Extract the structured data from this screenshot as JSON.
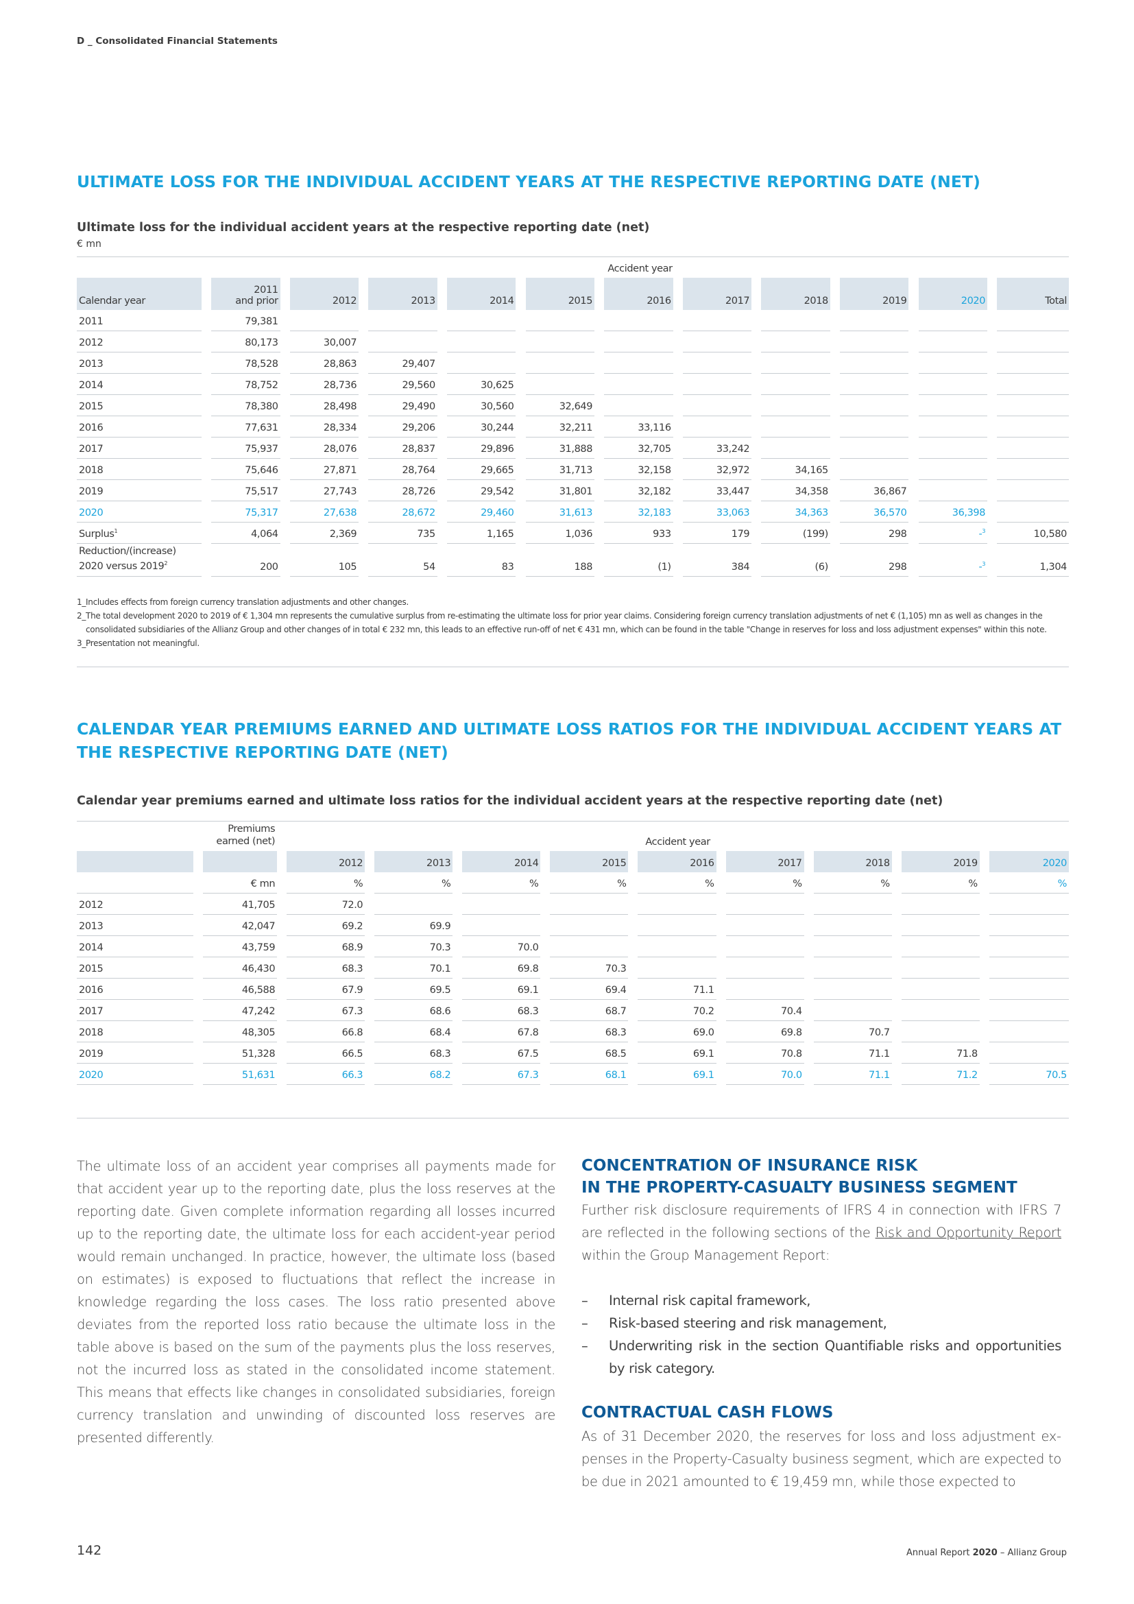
{
  "running_head": "D _ Consolidated Financial Statements",
  "section1": {
    "heading": "ULTIMATE LOSS FOR THE INDIVIDUAL ACCIDENT YEARS AT THE RESPECTIVE REPORTING DATE (NET)",
    "table_title": "Ultimate loss for the individual accident years at the respective reporting date (net)",
    "unit": "€ mn",
    "group_header": "Accident year",
    "col_header_first": "Calendar year",
    "col_2011_line1": "2011",
    "col_2011_line2": "and prior",
    "columns": [
      "2012",
      "2013",
      "2014",
      "2015",
      "2016",
      "2017",
      "2018",
      "2019",
      "2020",
      "Total"
    ],
    "rows": [
      {
        "label": "2011",
        "values": [
          "79,381",
          "",
          "",
          "",
          "",
          "",
          "",
          "",
          "",
          "",
          ""
        ]
      },
      {
        "label": "2012",
        "values": [
          "80,173",
          "30,007",
          "",
          "",
          "",
          "",
          "",
          "",
          "",
          "",
          ""
        ]
      },
      {
        "label": "2013",
        "values": [
          "78,528",
          "28,863",
          "29,407",
          "",
          "",
          "",
          "",
          "",
          "",
          "",
          ""
        ]
      },
      {
        "label": "2014",
        "values": [
          "78,752",
          "28,736",
          "29,560",
          "30,625",
          "",
          "",
          "",
          "",
          "",
          "",
          ""
        ]
      },
      {
        "label": "2015",
        "values": [
          "78,380",
          "28,498",
          "29,490",
          "30,560",
          "32,649",
          "",
          "",
          "",
          "",
          "",
          ""
        ]
      },
      {
        "label": "2016",
        "values": [
          "77,631",
          "28,334",
          "29,206",
          "30,244",
          "32,211",
          "33,116",
          "",
          "",
          "",
          "",
          ""
        ]
      },
      {
        "label": "2017",
        "values": [
          "75,937",
          "28,076",
          "28,837",
          "29,896",
          "31,888",
          "32,705",
          "33,242",
          "",
          "",
          "",
          ""
        ]
      },
      {
        "label": "2018",
        "values": [
          "75,646",
          "27,871",
          "28,764",
          "29,665",
          "31,713",
          "32,158",
          "32,972",
          "34,165",
          "",
          "",
          ""
        ]
      },
      {
        "label": "2019",
        "values": [
          "75,517",
          "27,743",
          "28,726",
          "29,542",
          "31,801",
          "32,182",
          "33,447",
          "34,358",
          "36,867",
          "",
          ""
        ]
      },
      {
        "label": "2020",
        "values": [
          "75,317",
          "27,638",
          "28,672",
          "29,460",
          "31,613",
          "32,183",
          "33,063",
          "34,363",
          "36,570",
          "36,398",
          ""
        ]
      },
      {
        "label": "Surplus",
        "sup": "1",
        "values": [
          "4,064",
          "2,369",
          "735",
          "1,165",
          "1,036",
          "933",
          "179",
          "(199)",
          "298",
          "-",
          "10,580"
        ],
        "sup_idx": 9,
        "sup_val": "3"
      },
      {
        "label": "Reduction/(increase)",
        "label2": "2020 versus 2019",
        "sup": "2",
        "values": [
          "200",
          "105",
          "54",
          "83",
          "188",
          "(1)",
          "384",
          "(6)",
          "298",
          "-",
          "1,304"
        ],
        "sup_idx": 9,
        "sup_val": "3"
      }
    ],
    "footnotes": [
      "1_Includes effects from foreign currency translation adjustments and other changes.",
      "2_The total development 2020 to 2019 of € 1,304 mn represents the cumulative surplus from re-estimating the ultimate loss for prior year claims. Considering foreign currency translation adjustments of net € (1,105) mn as well as changes in the",
      "consolidated subsidiaries of the Allianz Group and other changes of in total € 232 mn, this leads to an effective run-off of net € 431 mn, which can be found in the table \"Change in reserves for loss and loss adjustment expenses\" within this note.",
      "3_Presentation not meaningful."
    ]
  },
  "section2": {
    "heading_line1": "CALENDAR YEAR PREMIUMS EARNED AND ULTIMATE LOSS RATIOS FOR THE INDIVIDUAL ACCIDENT YEARS AT",
    "heading_line2": "THE RESPECTIVE REPORTING DATE (NET)",
    "table_title": "Calendar year premiums earned and ultimate loss ratios for the individual accident years at the respective reporting date (net)",
    "premiums_header_line1": "Premiums",
    "premiums_header_line2": "earned (net)",
    "group_header": "Accident year",
    "columns": [
      "2012",
      "2013",
      "2014",
      "2015",
      "2016",
      "2017",
      "2018",
      "2019",
      "2020"
    ],
    "unit_premiums": "€ mn",
    "unit_pct": "%",
    "rows": [
      {
        "label": "2012",
        "premiums": "41,705",
        "values": [
          "72.0",
          "",
          "",
          "",
          "",
          "",
          "",
          "",
          ""
        ]
      },
      {
        "label": "2013",
        "premiums": "42,047",
        "values": [
          "69.2",
          "69.9",
          "",
          "",
          "",
          "",
          "",
          "",
          ""
        ]
      },
      {
        "label": "2014",
        "premiums": "43,759",
        "values": [
          "68.9",
          "70.3",
          "70.0",
          "",
          "",
          "",
          "",
          "",
          ""
        ]
      },
      {
        "label": "2015",
        "premiums": "46,430",
        "values": [
          "68.3",
          "70.1",
          "69.8",
          "70.3",
          "",
          "",
          "",
          "",
          ""
        ]
      },
      {
        "label": "2016",
        "premiums": "46,588",
        "values": [
          "67.9",
          "69.5",
          "69.1",
          "69.4",
          "71.1",
          "",
          "",
          "",
          ""
        ]
      },
      {
        "label": "2017",
        "premiums": "47,242",
        "values": [
          "67.3",
          "68.6",
          "68.3",
          "68.7",
          "70.2",
          "70.4",
          "",
          "",
          ""
        ]
      },
      {
        "label": "2018",
        "premiums": "48,305",
        "values": [
          "66.8",
          "68.4",
          "67.8",
          "68.3",
          "69.0",
          "69.8",
          "70.7",
          "",
          ""
        ]
      },
      {
        "label": "2019",
        "premiums": "51,328",
        "values": [
          "66.5",
          "68.3",
          "67.5",
          "68.5",
          "69.1",
          "70.8",
          "71.1",
          "71.8",
          ""
        ]
      },
      {
        "label": "2020",
        "premiums": "51,631",
        "values": [
          "66.3",
          "68.2",
          "67.3",
          "68.1",
          "69.1",
          "70.0",
          "71.1",
          "71.2",
          "70.5"
        ]
      }
    ]
  },
  "left_paragraph": "The ultimate loss of an accident year comprises all payments made for that accident year up to the reporting date, plus the loss reserves at the reporting date. Given complete information regarding all losses in­curred up to the reporting date, the ultimate loss for each accident-year period would remain unchanged. In practice, however, the ulti­mate loss (based on estimates) is exposed to fluctuations that reflect the increase in knowledge regarding the loss cases. The loss ratio pre­sented above deviates from the reported loss ratio because the ulti­mate loss in the table above is based on the sum of the payments plus the loss reserves, not the incurred loss as stated in the consolidated in­come statement. This means that effects like changes in consolidated subsidiaries, foreign currency translation and unwinding of discounted loss reserves are presented differently.",
  "concentration": {
    "heading_line1": "CONCENTRATION OF INSURANCE RISK",
    "heading_line2": "IN THE PROPERTY-CASUALTY BUSINESS SEGMENT",
    "para_before": "Further risk disclosure requirements of IFRS 4 in connection with IFRS 7 are reflected in the following sections of the ",
    "link": "Risk and Opportunity Re­port",
    "para_after": " within the Group Management Report:",
    "bullets": [
      "Internal risk capital framework,",
      "Risk-based steering and risk management,",
      "Underwriting risk in the section Quantifiable risks and opportuni­ties by risk category."
    ]
  },
  "cashflows": {
    "heading": "CONTRACTUAL CASH FLOWS",
    "paragraph": "As of 31 December 2020, the reserves for loss and loss adjustment ex­penses in the Property-Casualty business segment, which are expected to be due in 2021 amounted to € 19,459 mn, while those expected to"
  },
  "footer": {
    "page_number": "142",
    "report_prefix": "Annual Report ",
    "report_year": "2020",
    "report_suffix": " – Allianz Group"
  }
}
